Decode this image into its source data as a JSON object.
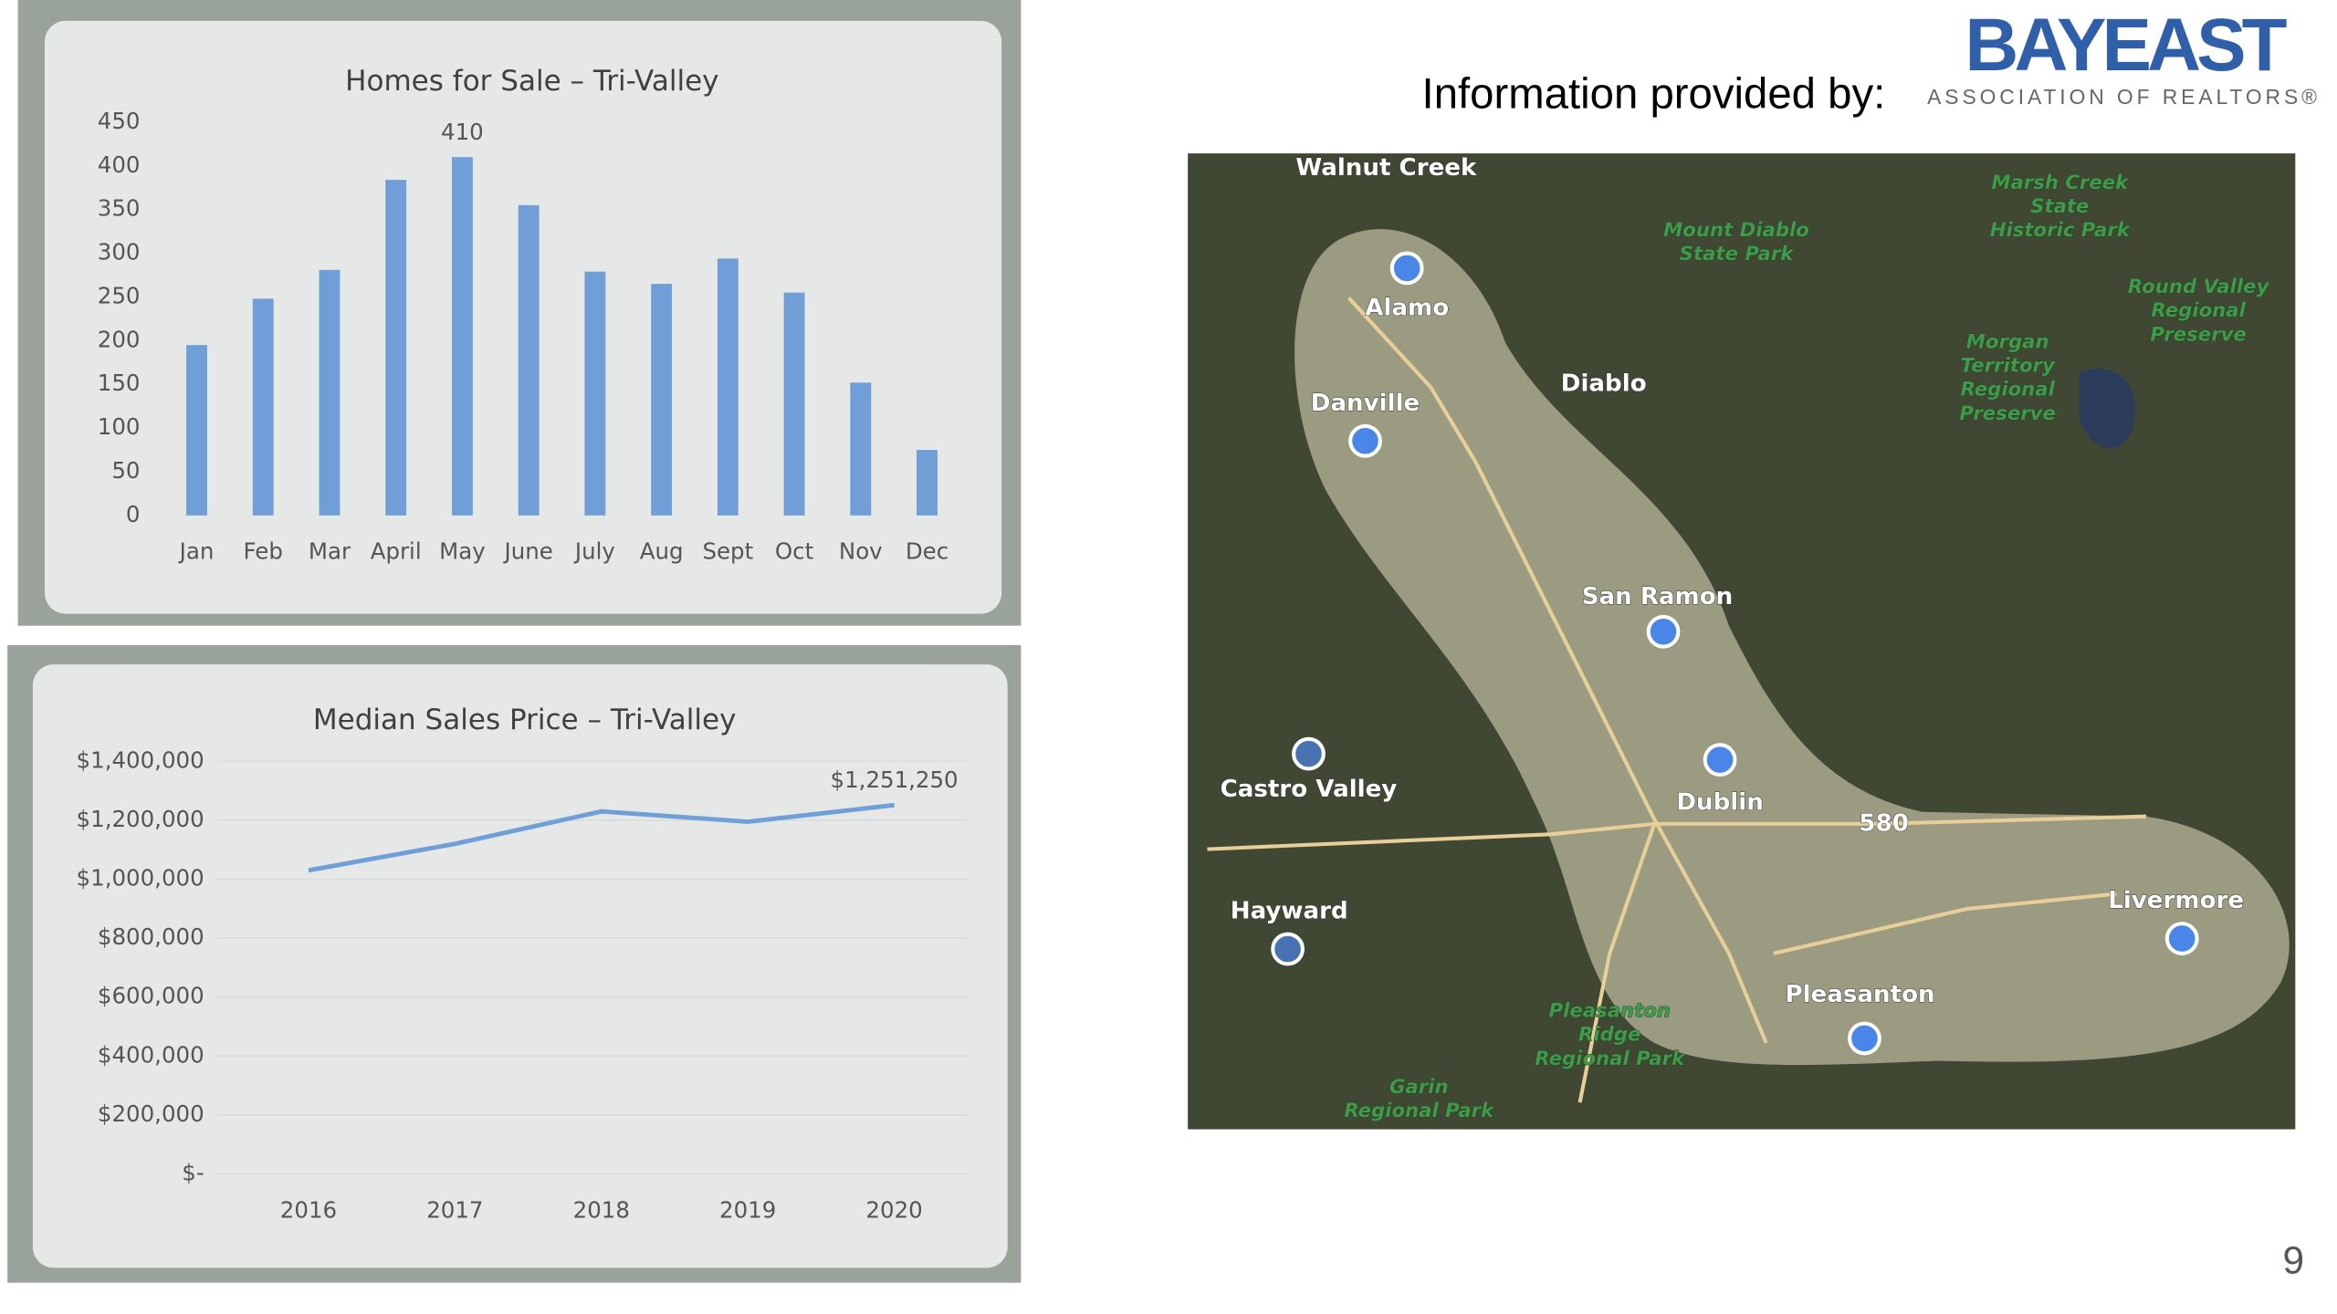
{
  "header": {
    "text": "Information provided by:",
    "logo_name": "BAYEAST",
    "logo_tagline": "ASSOCIATION OF REALTORS®"
  },
  "page_number": "9",
  "chart_data": [
    {
      "type": "bar",
      "title": "Homes for Sale – Tri-Valley",
      "categories": [
        "Jan",
        "Feb",
        "Mar",
        "April",
        "May",
        "June",
        "July",
        "Aug",
        "Sept",
        "Oct",
        "Nov",
        "Dec"
      ],
      "values": [
        195,
        248,
        281,
        384,
        410,
        355,
        279,
        265,
        294,
        255,
        152,
        75
      ],
      "value_labels": [
        null,
        null,
        null,
        null,
        "410",
        null,
        null,
        null,
        null,
        null,
        null,
        null
      ],
      "color": "#6f9fd6",
      "ylim": [
        0,
        450
      ],
      "yticks": [
        0,
        50,
        100,
        150,
        200,
        250,
        300,
        350,
        400,
        450
      ],
      "grid": false
    },
    {
      "type": "line",
      "title": "Median Sales Price – Tri-Valley",
      "categories": [
        "2016",
        "2017",
        "2018",
        "2019",
        "2020"
      ],
      "values": [
        1030000,
        1120000,
        1230000,
        1195000,
        1251250
      ],
      "value_labels": [
        null,
        null,
        null,
        null,
        "$1,251,250"
      ],
      "color": "#6f9fd6",
      "ylim": [
        0,
        1400000
      ],
      "yticks": [
        {
          "value": 0,
          "label": "$-"
        },
        {
          "value": 200000,
          "label": "$200,000"
        },
        {
          "value": 400000,
          "label": "$400,000"
        },
        {
          "value": 600000,
          "label": "$600,000"
        },
        {
          "value": 800000,
          "label": "$800,000"
        },
        {
          "value": 1000000,
          "label": "$1,000,000"
        },
        {
          "value": 1200000,
          "label": "$1,200,000"
        },
        {
          "value": 1400000,
          "label": "$1,400,000"
        }
      ],
      "grid": true
    }
  ],
  "map": {
    "labels": [
      [
        "Walnut Creek"
      ],
      [
        "Mount Diablo",
        "State Park"
      ],
      [
        "Marsh Creek",
        "State",
        "Historic Park"
      ],
      [
        "Round Valley",
        "Regional",
        "Preserve"
      ],
      [
        "Morgan",
        "Territory",
        "Regional",
        "Preserve"
      ],
      [
        "Alamo"
      ],
      [
        "Diablo"
      ],
      [
        "Danville"
      ],
      [
        "San Ramon"
      ],
      [
        "Castro Valley"
      ],
      [
        "Dublin"
      ],
      [
        "580"
      ],
      [
        "Hayward"
      ],
      [
        "Livermore"
      ],
      [
        "Pleasanton"
      ],
      [
        "Pleasanton",
        "Ridge",
        "Regional Park"
      ],
      [
        "Garin",
        "Regional Park"
      ]
    ]
  }
}
